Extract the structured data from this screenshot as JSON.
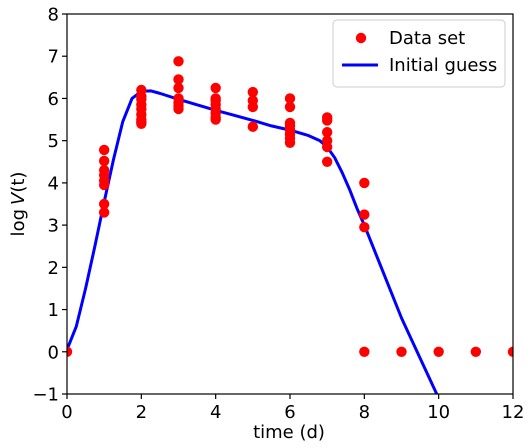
{
  "chart_data": {
    "type": "scatter",
    "xlabel": "time (d)",
    "ylabel_prefix": "log",
    "ylabel_var": "V",
    "ylabel_arg": "(t)",
    "xlim": [
      0,
      12
    ],
    "ylim": [
      -1,
      8
    ],
    "x_ticks": [
      0,
      2,
      4,
      6,
      8,
      10,
      12
    ],
    "y_ticks": [
      -1,
      0,
      1,
      2,
      3,
      4,
      5,
      6,
      7,
      8
    ],
    "grid": false,
    "legend_placement": "top-right",
    "colors": {
      "data": "#ff0000",
      "guess": "#0000ff"
    },
    "series": [
      {
        "name": "Data set",
        "kind": "points",
        "x": [
          0,
          1,
          1,
          1,
          1,
          1,
          1,
          1,
          1,
          2,
          2,
          2,
          2,
          2,
          2,
          2,
          2,
          2,
          3,
          3,
          3,
          3,
          3,
          3,
          3,
          4,
          4,
          4,
          4,
          4,
          4,
          4,
          4,
          5,
          5,
          5,
          5,
          6,
          6,
          6,
          6,
          6,
          6,
          6,
          6,
          7,
          7,
          7,
          7,
          7,
          7,
          8,
          8,
          8,
          8,
          9,
          10,
          11,
          12
        ],
        "y": [
          0,
          4.78,
          4.52,
          4.3,
          4.18,
          4.05,
          3.95,
          3.5,
          3.3,
          6.2,
          6.05,
          5.98,
          5.85,
          5.75,
          5.62,
          5.5,
          5.45,
          5.4,
          6.88,
          6.45,
          6.25,
          6.0,
          5.9,
          5.82,
          5.75,
          6.25,
          6.0,
          5.95,
          5.85,
          5.75,
          5.65,
          5.55,
          5.5,
          6.15,
          5.95,
          5.8,
          5.33,
          6.0,
          5.8,
          5.42,
          5.35,
          5.25,
          5.15,
          5.05,
          4.95,
          5.55,
          5.48,
          5.2,
          5.0,
          4.85,
          4.5,
          4.0,
          3.25,
          2.95,
          0,
          0,
          0,
          0,
          0
        ]
      },
      {
        "name": "Initial guess",
        "kind": "line",
        "x": [
          0,
          0.25,
          0.5,
          0.75,
          1.0,
          1.25,
          1.5,
          1.75,
          2.0,
          2.25,
          2.5,
          3.0,
          3.5,
          4.0,
          4.5,
          5.0,
          5.5,
          6.0,
          6.5,
          6.8,
          7.0,
          7.2,
          7.4,
          7.6,
          7.8,
          8.0,
          8.5,
          9.0,
          9.5,
          10.0
        ],
        "y": [
          0.05,
          0.6,
          1.5,
          2.5,
          3.55,
          4.55,
          5.45,
          6.0,
          6.17,
          6.18,
          6.12,
          5.98,
          5.85,
          5.72,
          5.6,
          5.48,
          5.35,
          5.25,
          5.12,
          5.0,
          4.85,
          4.6,
          4.25,
          3.85,
          3.4,
          3.0,
          1.9,
          0.8,
          -0.15,
          -1.1
        ]
      }
    ]
  }
}
